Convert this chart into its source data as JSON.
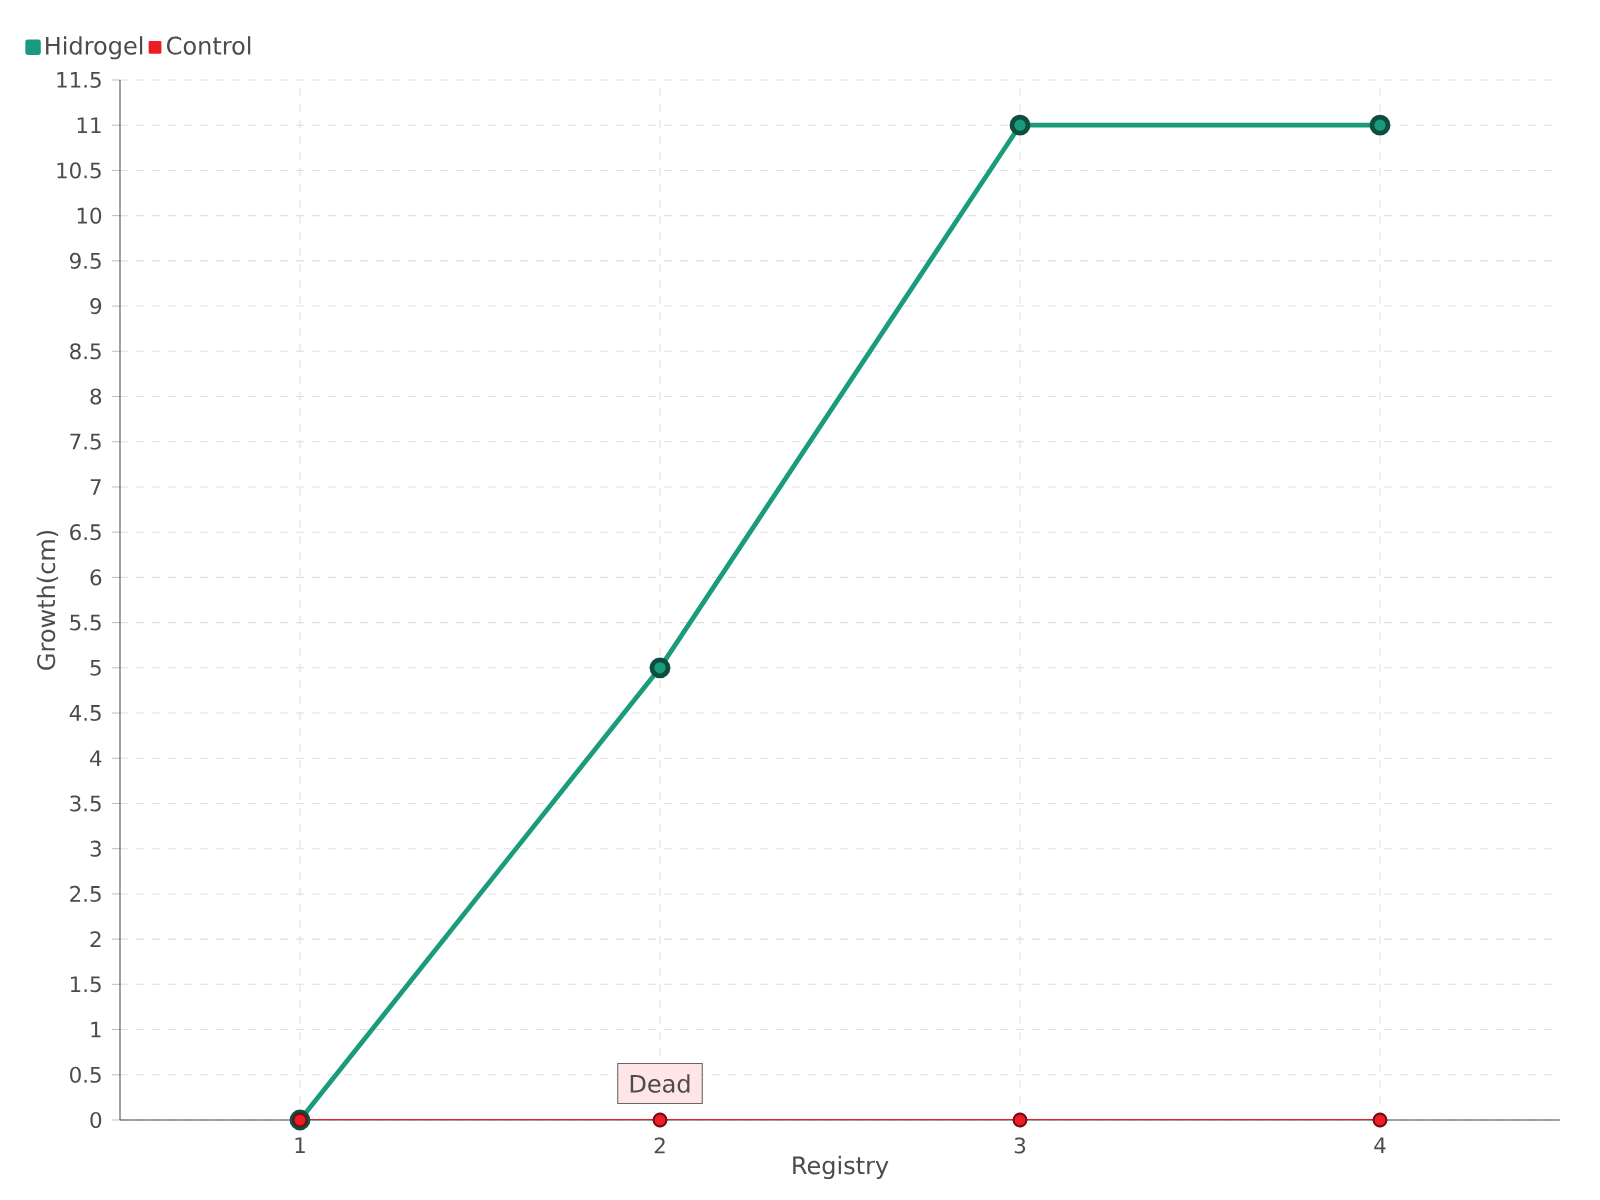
{
  "chart_data": {
    "type": "line",
    "xlabel": "Registry",
    "ylabel": "Growth(cm)",
    "categories": [
      "1",
      "2",
      "3",
      "4"
    ],
    "series": [
      {
        "name": "Hidrogel",
        "color": "#1a9c7c",
        "values": [
          0,
          5,
          11,
          11
        ]
      },
      {
        "name": "Control",
        "color": "#ee1c25",
        "values": [
          0,
          0,
          0,
          0
        ]
      }
    ],
    "ylim": [
      0,
      11.5
    ],
    "yticks": [
      0,
      0.5,
      1,
      1.5,
      2,
      2.5,
      3,
      3.5,
      4,
      4.5,
      5,
      5.5,
      6,
      6.5,
      7,
      7.5,
      8,
      8.5,
      9,
      9.5,
      10,
      10.5,
      11,
      11.5
    ],
    "grid": true,
    "legend": "top left",
    "marker": "circle",
    "line_style": "solid",
    "annotations": [
      {
        "text": "Dead",
        "x": "2",
        "y": 0
      }
    ]
  }
}
